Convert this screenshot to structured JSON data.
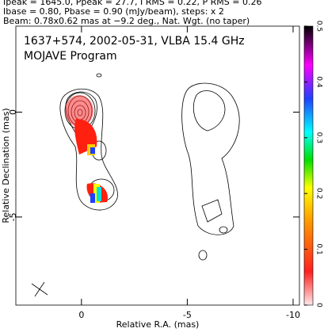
{
  "chart_data": {
    "type": "contour",
    "header": [
      "Ipeak = 1645.0, Ppeak = 27.7, I RMS = 0.22, P RMS = 0.26",
      "Ibase = 0.80, Pbase = 0.90 (mJy/beam), steps: x 2",
      "Beam: 0.78x0.62 mas at −9.2 deg., Nat. Wgt. (no taper)"
    ],
    "title": "1637+574, 2002-05-31, VLBA 15.4 GHz",
    "subtitle": "MOJAVE Program",
    "xlabel": "Relative R.A. (mas)",
    "ylabel": "Relative Declination (mas)",
    "xlim": [
      3.1,
      -10.3
    ],
    "xticks": [
      0,
      -5,
      -10
    ],
    "ylim": [
      -9.2,
      4.1
    ],
    "yticks": [
      0,
      -5
    ],
    "clim": [
      0,
      0.5
    ],
    "cticks": [
      0,
      0.1,
      0.2,
      0.3,
      0.4,
      0.5
    ]
  }
}
